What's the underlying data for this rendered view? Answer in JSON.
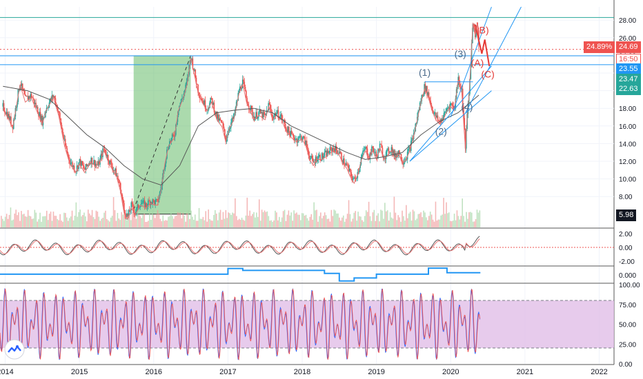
{
  "chart_data": {
    "type": "line",
    "panels": [
      {
        "name": "price",
        "price_axis_ticks": [
          "28.00",
          "26.00",
          "24.00",
          "22.00",
          "20.00",
          "18.00",
          "16.00",
          "14.00",
          "12.00",
          "10.00",
          "8.00"
        ],
        "ylim": [
          4.5,
          29.5
        ],
        "price_path": [
          [
            2013.97,
            18.2
          ],
          [
            2014.05,
            17.0
          ],
          [
            2014.1,
            16.0
          ],
          [
            2014.15,
            18.5
          ],
          [
            2014.2,
            21.0
          ],
          [
            2014.27,
            19.0
          ],
          [
            2014.35,
            19.5
          ],
          [
            2014.45,
            17.5
          ],
          [
            2014.5,
            16.5
          ],
          [
            2014.55,
            18.0
          ],
          [
            2014.65,
            19.5
          ],
          [
            2014.72,
            17.5
          ],
          [
            2014.8,
            14.0
          ],
          [
            2014.87,
            12.0
          ],
          [
            2014.95,
            11.0
          ],
          [
            2015.0,
            12.0
          ],
          [
            2015.07,
            11.0
          ],
          [
            2015.15,
            12.2
          ],
          [
            2015.25,
            11.5
          ],
          [
            2015.33,
            13.5
          ],
          [
            2015.4,
            12.0
          ],
          [
            2015.5,
            10.5
          ],
          [
            2015.55,
            9.0
          ],
          [
            2015.6,
            6.5
          ],
          [
            2015.65,
            5.7
          ],
          [
            2015.7,
            7.0
          ],
          [
            2015.75,
            6.2
          ],
          [
            2015.82,
            7.3
          ],
          [
            2015.9,
            7.0
          ],
          [
            2015.95,
            7.5
          ],
          [
            2016.05,
            7.3
          ],
          [
            2016.1,
            9.0
          ],
          [
            2016.15,
            12.0
          ],
          [
            2016.2,
            14.0
          ],
          [
            2016.28,
            15.0
          ],
          [
            2016.33,
            18.0
          ],
          [
            2016.4,
            19.5
          ],
          [
            2016.45,
            21.0
          ],
          [
            2016.5,
            24.0
          ],
          [
            2016.55,
            22.0
          ],
          [
            2016.6,
            20.0
          ],
          [
            2016.65,
            19.0
          ],
          [
            2016.72,
            18.0
          ],
          [
            2016.78,
            19.0
          ],
          [
            2016.85,
            17.0
          ],
          [
            2016.92,
            16.2
          ],
          [
            2016.97,
            14.5
          ],
          [
            2017.02,
            16.0
          ],
          [
            2017.08,
            17.0
          ],
          [
            2017.15,
            20.0
          ],
          [
            2017.2,
            21.0
          ],
          [
            2017.25,
            19.0
          ],
          [
            2017.3,
            18.0
          ],
          [
            2017.35,
            17.0
          ],
          [
            2017.42,
            17.5
          ],
          [
            2017.5,
            17.0
          ],
          [
            2017.55,
            18.5
          ],
          [
            2017.6,
            17.0
          ],
          [
            2017.65,
            17.5
          ],
          [
            2017.72,
            17.0
          ],
          [
            2017.78,
            15.8
          ],
          [
            2017.85,
            15.0
          ],
          [
            2017.92,
            14.5
          ],
          [
            2018.0,
            14.8
          ],
          [
            2018.05,
            14.0
          ],
          [
            2018.1,
            12.5
          ],
          [
            2018.15,
            11.8
          ],
          [
            2018.2,
            12.5
          ],
          [
            2018.27,
            12.5
          ],
          [
            2018.35,
            13.0
          ],
          [
            2018.42,
            13.5
          ],
          [
            2018.5,
            13.0
          ],
          [
            2018.55,
            12.0
          ],
          [
            2018.6,
            11.5
          ],
          [
            2018.65,
            10.5
          ],
          [
            2018.7,
            9.8
          ],
          [
            2018.75,
            10.8
          ],
          [
            2018.8,
            12.5
          ],
          [
            2018.85,
            13.5
          ],
          [
            2018.9,
            12.5
          ],
          [
            2018.95,
            13.5
          ],
          [
            2019.0,
            12.5
          ],
          [
            2019.05,
            13.8
          ],
          [
            2019.1,
            12.5
          ],
          [
            2019.2,
            13.5
          ],
          [
            2019.25,
            12.5
          ],
          [
            2019.3,
            13.2
          ],
          [
            2019.35,
            12.0
          ],
          [
            2019.4,
            12.5
          ],
          [
            2019.45,
            13.5
          ],
          [
            2019.5,
            15.0
          ],
          [
            2019.55,
            17.0
          ],
          [
            2019.6,
            19.0
          ],
          [
            2019.65,
            20.5
          ],
          [
            2019.7,
            19.5
          ],
          [
            2019.75,
            18.0
          ],
          [
            2019.8,
            17.0
          ],
          [
            2019.85,
            16.5
          ],
          [
            2019.9,
            17.0
          ],
          [
            2019.95,
            18.0
          ],
          [
            2020.0,
            18.5
          ],
          [
            2020.05,
            18.0
          ],
          [
            2020.1,
            21.5
          ],
          [
            2020.15,
            20.0
          ],
          [
            2020.18,
            16.0
          ],
          [
            2020.2,
            13.5
          ],
          [
            2020.22,
            17.0
          ],
          [
            2020.25,
            20.0
          ],
          [
            2020.28,
            25.0
          ],
          [
            2020.3,
            28.0
          ],
          [
            2020.33,
            26.5
          ],
          [
            2020.36,
            28.0
          ],
          [
            2020.38,
            24.7
          ]
        ],
        "slow_ma_path": [
          [
            2013.97,
            20.5
          ],
          [
            2014.3,
            20.0
          ],
          [
            2014.6,
            19.0
          ],
          [
            2014.85,
            17.0
          ],
          [
            2015.1,
            15.0
          ],
          [
            2015.35,
            13.5
          ],
          [
            2015.6,
            11.5
          ],
          [
            2015.85,
            10.0
          ],
          [
            2016.1,
            9.3
          ],
          [
            2016.35,
            11.5
          ],
          [
            2016.6,
            16.0
          ],
          [
            2016.85,
            17.5
          ],
          [
            2017.1,
            17.8
          ],
          [
            2017.35,
            18.0
          ],
          [
            2017.6,
            17.5
          ],
          [
            2017.85,
            16.0
          ],
          [
            2018.1,
            15.0
          ],
          [
            2018.35,
            14.0
          ],
          [
            2018.6,
            13.0
          ],
          [
            2018.85,
            12.2
          ],
          [
            2019.1,
            12.5
          ],
          [
            2019.35,
            13.0
          ],
          [
            2019.6,
            15.0
          ],
          [
            2019.85,
            16.5
          ],
          [
            2020.1,
            17.5
          ],
          [
            2020.38,
            19.5
          ]
        ],
        "horizontal_levels": [
          {
            "price": 28.3,
            "color": "#26a69a"
          },
          {
            "price": 23.95,
            "color": "#2196f3"
          },
          {
            "price": 22.95,
            "color": "#2196f3"
          },
          {
            "price": 24.69,
            "color": "#ef5350",
            "dashed": true
          }
        ],
        "wave_labels": [
          {
            "text": "(1)",
            "x": 2019.65,
            "y": 21.7,
            "color": "#4a6a8a"
          },
          {
            "text": "(2)",
            "x": 2019.87,
            "y": 15.0,
            "color": "#4a6a8a"
          },
          {
            "text": "(3)",
            "x": 2020.13,
            "y": 23.8,
            "color": "#4a6a8a"
          },
          {
            "text": "(4)",
            "x": 2020.22,
            "y": 17.8,
            "color": "#4a6a8a"
          },
          {
            "text": "B)",
            "x": 2020.45,
            "y": 26.5,
            "color": "#e53935"
          },
          {
            "text": "(A)",
            "x": 2020.36,
            "y": 22.8,
            "color": "#e53935"
          },
          {
            "text": "(C)",
            "x": 2020.5,
            "y": 21.5,
            "color": "#e53935"
          }
        ],
        "highlight_range": {
          "x": [
            2015.73,
            2016.5
          ],
          "color": "#66bb6a"
        }
      },
      {
        "name": "oscillator",
        "ticks": [
          "2.00",
          "0.00",
          "-2.00"
        ],
        "ylim": [
          -2.6,
          2.6
        ]
      },
      {
        "name": "indicator_line",
        "ticks": [
          "0.000"
        ],
        "ylim": [
          -1,
          1
        ]
      },
      {
        "name": "stochastic",
        "ticks": [
          "100.00",
          "75.00",
          "50.00",
          "25.00",
          "0.00"
        ],
        "ylim": [
          0,
          100
        ],
        "band": [
          20,
          80
        ]
      }
    ],
    "x_axis_ticks": [
      {
        "label": "2014",
        "x": 2014.0
      },
      {
        "label": "2015",
        "x": 2015.0
      },
      {
        "label": "2016",
        "x": 2016.0
      },
      {
        "label": "2017",
        "x": 2017.0
      },
      {
        "label": "2018",
        "x": 2018.0
      },
      {
        "label": "2019",
        "x": 2019.0
      },
      {
        "label": "2020",
        "x": 2020.0
      },
      {
        "label": "2021",
        "x": 2021.0
      },
      {
        "label": "2022",
        "x": 2022.0
      }
    ],
    "xlim": [
      2013.93,
      2022.2
    ]
  },
  "price_tags": {
    "pct_label": "24.89%",
    "last_price": "24.69",
    "time_left": "16:50",
    "level_a": "23.55",
    "level_b": "23.47",
    "level_c": "22.63",
    "volume_low": "5.98"
  },
  "colors": {
    "up": "#26a69a",
    "down": "#ef5350",
    "grid": "#f0f3fa",
    "axis_text": "#131722",
    "stoch_band": "#e1bee7",
    "indicator_blue": "#2196f3"
  }
}
